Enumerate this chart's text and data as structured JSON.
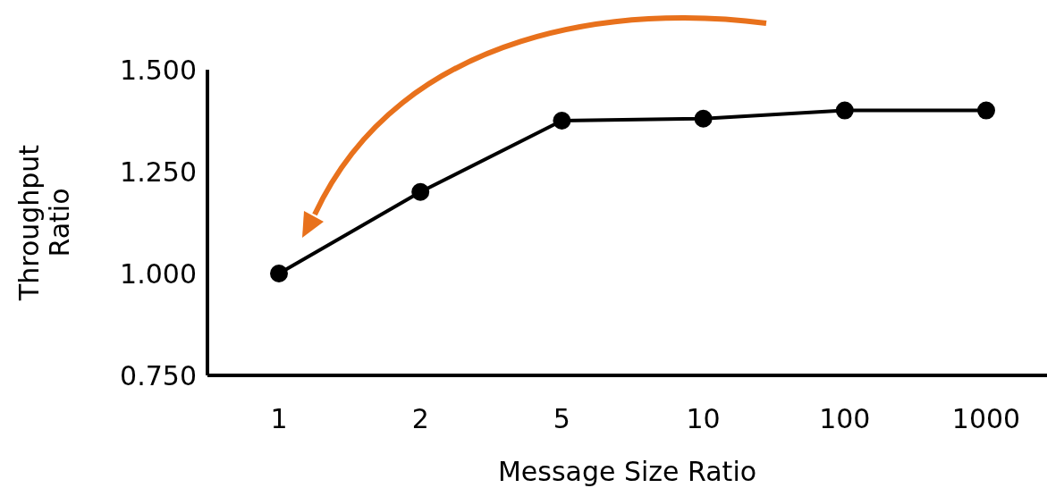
{
  "chart_data": {
    "type": "line",
    "xlabel": "Message Size Ratio",
    "ylabel": "Throughput Ratio",
    "categories": [
      "1",
      "2",
      "5",
      "10",
      "100",
      "1000"
    ],
    "series": [
      {
        "color": "#000000",
        "values": [
          1.0,
          1.2,
          1.375,
          1.38,
          1.4,
          1.4
        ]
      }
    ],
    "ylim": [
      0.75,
      1.5
    ],
    "yticks": [
      {
        "value": 0.75,
        "label": "0.750"
      },
      {
        "value": 1.0,
        "label": "1.000"
      },
      {
        "value": 1.25,
        "label": "1.250"
      },
      {
        "value": 1.5,
        "label": "1.500"
      }
    ],
    "grid": false,
    "legend": false,
    "marker": "circle",
    "line_style": "solid"
  }
}
